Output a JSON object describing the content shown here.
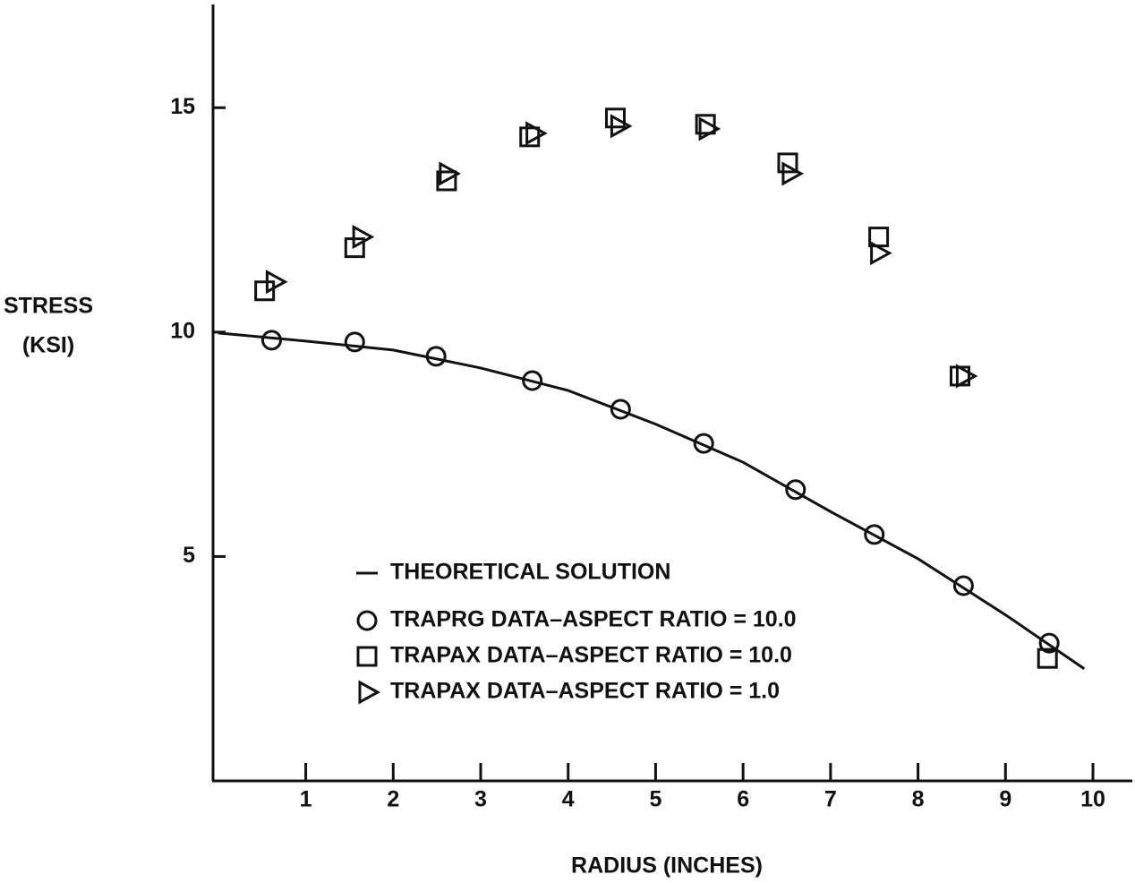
{
  "chart_data": {
    "type": "scatter",
    "xlabel": "RADIUS (INCHES)",
    "ylabel": [
      "STRESS",
      "(KSI)"
    ],
    "xlim": [
      -0.06,
      10.45
    ],
    "ylim": [
      0,
      17.3
    ],
    "xticks": [
      1,
      2,
      3,
      4,
      5,
      6,
      7,
      8,
      9,
      10
    ],
    "yticks": [
      5,
      10,
      15
    ],
    "grid": false,
    "series": [
      {
        "name": "THEORETICAL SOLUTION",
        "marker": "line",
        "color": "#111111",
        "x": [
          0,
          1,
          2,
          3,
          4,
          5,
          6,
          7,
          8,
          9,
          9.9
        ],
        "values": [
          9.98,
          9.8,
          9.6,
          9.2,
          8.7,
          7.95,
          7.1,
          6.0,
          4.95,
          3.7,
          2.5
        ]
      },
      {
        "name": "TRAPRG DATA–ASPECT RATIO = 10.0",
        "marker": "circle",
        "color": "#111111",
        "x": [
          0.61,
          1.56,
          2.49,
          3.59,
          4.6,
          5.55,
          6.6,
          7.5,
          8.52,
          9.5
        ],
        "values": [
          9.82,
          9.78,
          9.46,
          8.92,
          8.28,
          7.52,
          6.49,
          5.49,
          4.35,
          3.07
        ]
      },
      {
        "name": "TRAPAX DATA–ASPECT RATIO = 10.0",
        "marker": "square",
        "color": "#111111",
        "x": [
          0.53,
          1.56,
          2.61,
          3.56,
          4.54,
          5.57,
          6.51,
          7.55,
          8.48,
          9.48
        ],
        "values": [
          10.92,
          11.88,
          13.37,
          14.35,
          14.77,
          14.63,
          13.77,
          12.12,
          9.02,
          2.73
        ]
      },
      {
        "name": "TRAPAX DATA–ASPECT RATIO = 1.0",
        "marker": "triangle",
        "color": "#111111",
        "x": [
          0.64,
          1.63,
          2.62,
          3.61,
          4.58,
          5.59,
          6.54,
          7.55,
          8.53
        ],
        "values": [
          11.12,
          12.12,
          13.53,
          14.43,
          14.59,
          14.53,
          13.53,
          11.76,
          9.02
        ]
      }
    ]
  }
}
